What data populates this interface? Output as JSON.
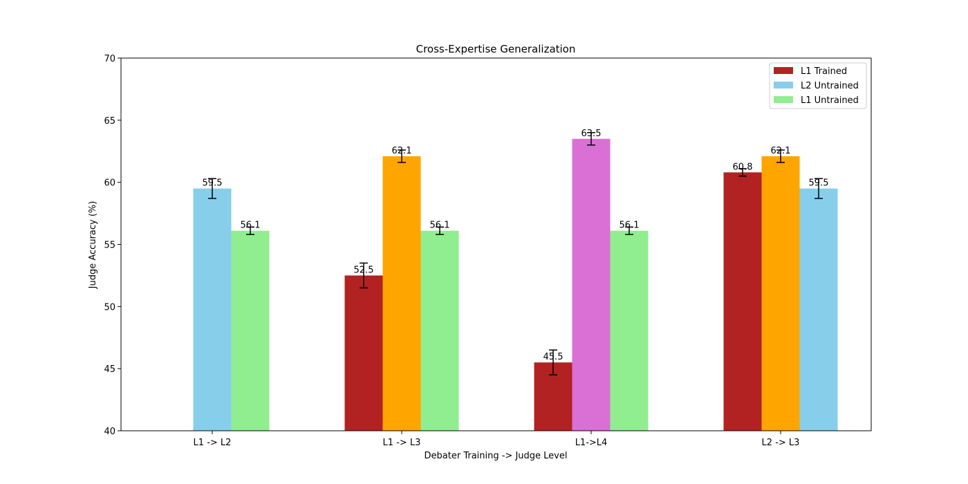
{
  "chart_data": {
    "type": "bar",
    "title": "Cross-Expertise Generalization",
    "xlabel": "Debater Training -> Judge Level",
    "ylabel": "Judge Accuracy (%)",
    "ylim": [
      40,
      70
    ],
    "yticks": [
      40,
      45,
      50,
      55,
      60,
      65,
      70
    ],
    "grid": false,
    "legend_position": "top-right",
    "legend": [
      {
        "label": "L1 Trained",
        "color": "#b22222"
      },
      {
        "label": "L2 Untrained",
        "color": "#87ceeb"
      },
      {
        "label": "L1 Untrained",
        "color": "#90ee90"
      }
    ],
    "groups": [
      {
        "category": "L1 -> L2",
        "bars": [
          {
            "value": 59.5,
            "error": 0.8,
            "color": "#87ceeb",
            "slot": 1,
            "label": "59.5"
          },
          {
            "value": 56.1,
            "error": 0.3,
            "color": "#90ee90",
            "slot": 2,
            "label": "56.1"
          }
        ]
      },
      {
        "category": "L1 -> L3",
        "bars": [
          {
            "value": 52.5,
            "error": 1.0,
            "color": "#b22222",
            "slot": 0,
            "label": "52.5"
          },
          {
            "value": 62.1,
            "error": 0.5,
            "color": "#ffa500",
            "slot": 1,
            "label": "62.1"
          },
          {
            "value": 56.1,
            "error": 0.3,
            "color": "#90ee90",
            "slot": 2,
            "label": "56.1"
          }
        ]
      },
      {
        "category": "L1->L4",
        "bars": [
          {
            "value": 45.5,
            "error": 1.0,
            "color": "#b22222",
            "slot": 0,
            "label": "45.5"
          },
          {
            "value": 63.5,
            "error": 0.5,
            "color": "#da70d6",
            "slot": 1,
            "label": "63.5"
          },
          {
            "value": 56.1,
            "error": 0.3,
            "color": "#90ee90",
            "slot": 2,
            "label": "56.1"
          }
        ]
      },
      {
        "category": "L2 -> L3",
        "bars": [
          {
            "value": 60.8,
            "error": 0.3,
            "color": "#b22222",
            "slot": 0,
            "label": "60.8"
          },
          {
            "value": 62.1,
            "error": 0.5,
            "color": "#ffa500",
            "slot": 1,
            "label": "62.1"
          },
          {
            "value": 59.5,
            "error": 0.8,
            "color": "#87ceeb",
            "slot": 2,
            "label": "59.5"
          }
        ]
      }
    ]
  }
}
